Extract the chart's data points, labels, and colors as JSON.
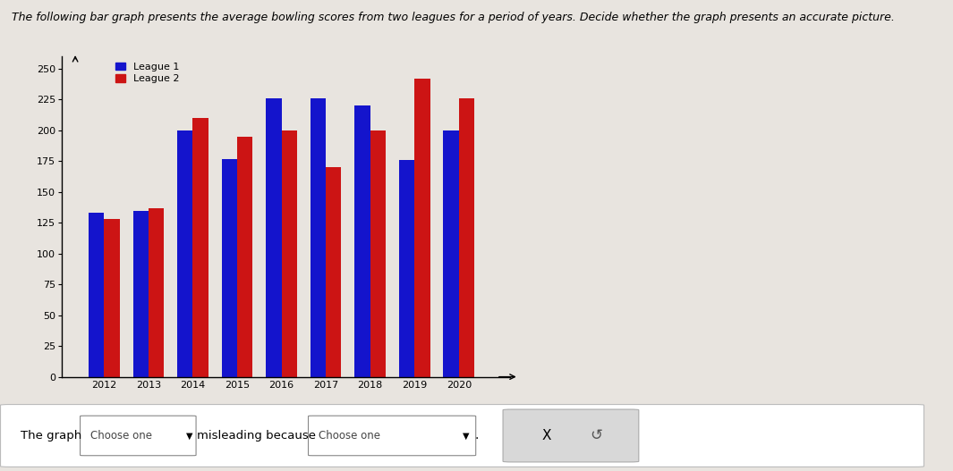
{
  "years": [
    2012,
    2013,
    2014,
    2015,
    2016,
    2017,
    2018,
    2019,
    2020
  ],
  "league1": [
    133,
    135,
    200,
    177,
    226,
    226,
    220,
    176,
    200
  ],
  "league2": [
    128,
    137,
    210,
    195,
    200,
    170,
    200,
    242,
    226
  ],
  "league1_color": "#1414cc",
  "league2_color": "#cc1414",
  "ylim": [
    0,
    260
  ],
  "yticks": [
    0,
    25,
    50,
    75,
    100,
    125,
    150,
    175,
    200,
    225,
    250
  ],
  "legend_labels": [
    "League 1",
    "League 2"
  ],
  "bg_color": "#e8e4df",
  "chart_bg": "#e8e4df",
  "title": "The following bar graph presents the average bowling scores from two leagues for a period of years. Decide whether the graph presents an accurate picture.",
  "bar_width": 0.35,
  "figsize": [
    10.65,
    5.27
  ],
  "dpi": 100
}
